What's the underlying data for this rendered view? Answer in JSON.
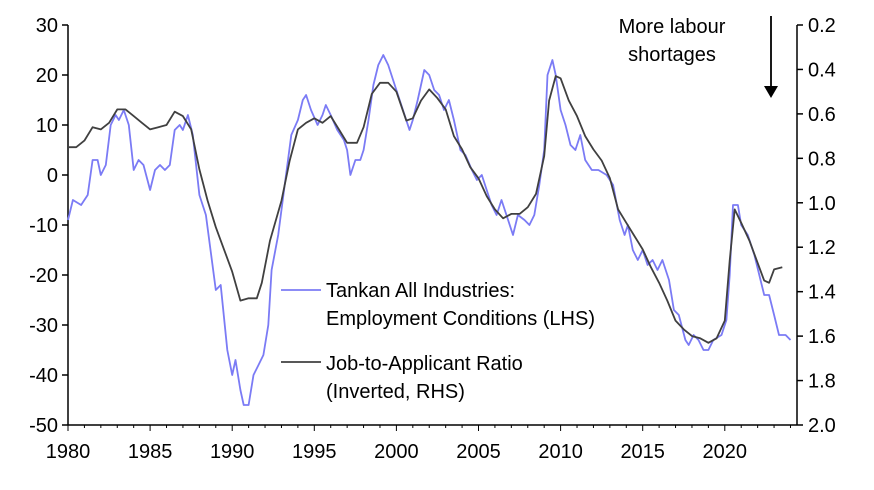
{
  "chart_data": {
    "type": "line",
    "title": "",
    "xlabel": "",
    "ylabel_left": "",
    "ylabel_right": "",
    "xlim": [
      1980,
      2024.3
    ],
    "ylim_left": [
      -50,
      30
    ],
    "ylim_right_inverted": [
      0.2,
      2.0
    ],
    "x_ticks": [
      "1980",
      "1985",
      "1990",
      "1995",
      "2000",
      "2005",
      "2010",
      "2015",
      "2020"
    ],
    "y_left_ticks": [
      "30",
      "20",
      "10",
      "0",
      "-10",
      "-20",
      "-30",
      "-40",
      "-50"
    ],
    "y_right_ticks": [
      "0.2",
      "0.4",
      "0.6",
      "0.8",
      "1.0",
      "1.2",
      "1.4",
      "1.6",
      "1.8",
      "2.0"
    ],
    "grid": false,
    "legend_placement": "center-bottom",
    "annotation": {
      "lines": [
        "More labour",
        "shortages"
      ],
      "arrow": "down"
    },
    "series": [
      {
        "name": "Tankan All Industries: Employment Conditions (LHS)",
        "legend_lines": [
          "Tankan All Industries:",
          "Employment Conditions (LHS)"
        ],
        "axis": "left",
        "color": "#7b7bf5",
        "points": [
          [
            1980.0,
            -9
          ],
          [
            1980.3,
            -5
          ],
          [
            1980.8,
            -6
          ],
          [
            1981.2,
            -4
          ],
          [
            1981.5,
            3
          ],
          [
            1981.8,
            3
          ],
          [
            1982.0,
            0
          ],
          [
            1982.3,
            2
          ],
          [
            1982.6,
            10
          ],
          [
            1982.9,
            12
          ],
          [
            1983.1,
            11
          ],
          [
            1983.4,
            13
          ],
          [
            1983.7,
            10
          ],
          [
            1984.0,
            1
          ],
          [
            1984.3,
            3
          ],
          [
            1984.6,
            2
          ],
          [
            1985.0,
            -3
          ],
          [
            1985.3,
            1
          ],
          [
            1985.6,
            2
          ],
          [
            1985.9,
            1
          ],
          [
            1986.2,
            2
          ],
          [
            1986.5,
            9
          ],
          [
            1986.8,
            10
          ],
          [
            1987.0,
            9
          ],
          [
            1987.3,
            12
          ],
          [
            1987.6,
            8
          ],
          [
            1988.0,
            -4
          ],
          [
            1988.4,
            -8
          ],
          [
            1988.8,
            -18
          ],
          [
            1989.0,
            -23
          ],
          [
            1989.3,
            -22
          ],
          [
            1989.7,
            -35
          ],
          [
            1990.0,
            -40
          ],
          [
            1990.2,
            -37
          ],
          [
            1990.5,
            -43
          ],
          [
            1990.7,
            -46
          ],
          [
            1991.0,
            -46
          ],
          [
            1991.3,
            -40
          ],
          [
            1991.6,
            -38
          ],
          [
            1991.9,
            -36
          ],
          [
            1992.2,
            -30
          ],
          [
            1992.4,
            -19
          ],
          [
            1992.8,
            -12
          ],
          [
            1993.2,
            -2
          ],
          [
            1993.6,
            8
          ],
          [
            1994.0,
            11
          ],
          [
            1994.3,
            15
          ],
          [
            1994.5,
            16
          ],
          [
            1994.8,
            13
          ],
          [
            1995.2,
            10
          ],
          [
            1995.5,
            12
          ],
          [
            1995.7,
            14
          ],
          [
            1996.0,
            12
          ],
          [
            1996.4,
            9
          ],
          [
            1996.8,
            7
          ],
          [
            1997.0,
            5
          ],
          [
            1997.2,
            0
          ],
          [
            1997.5,
            3
          ],
          [
            1997.8,
            3
          ],
          [
            1998.0,
            5
          ],
          [
            1998.3,
            11
          ],
          [
            1998.6,
            18
          ],
          [
            1998.9,
            22
          ],
          [
            1999.2,
            24
          ],
          [
            1999.5,
            22
          ],
          [
            1999.8,
            19
          ],
          [
            2000.1,
            16
          ],
          [
            2000.5,
            12
          ],
          [
            2000.8,
            9
          ],
          [
            2001.0,
            11
          ],
          [
            2001.3,
            15
          ],
          [
            2001.7,
            21
          ],
          [
            2002.0,
            20
          ],
          [
            2002.3,
            17
          ],
          [
            2002.6,
            16
          ],
          [
            2002.9,
            13
          ],
          [
            2003.2,
            15
          ],
          [
            2003.5,
            11
          ],
          [
            2003.9,
            5
          ],
          [
            2004.2,
            4
          ],
          [
            2004.6,
            1
          ],
          [
            2004.9,
            -1
          ],
          [
            2005.2,
            0
          ],
          [
            2005.5,
            -3
          ],
          [
            2005.8,
            -6
          ],
          [
            2006.1,
            -8
          ],
          [
            2006.4,
            -5
          ],
          [
            2006.8,
            -9
          ],
          [
            2007.1,
            -12
          ],
          [
            2007.4,
            -8
          ],
          [
            2007.8,
            -9
          ],
          [
            2008.1,
            -10
          ],
          [
            2008.4,
            -8
          ],
          [
            2008.7,
            -2
          ],
          [
            2009.0,
            5
          ],
          [
            2009.2,
            20
          ],
          [
            2009.5,
            23
          ],
          [
            2009.7,
            20
          ],
          [
            2010.0,
            13
          ],
          [
            2010.3,
            10
          ],
          [
            2010.6,
            6
          ],
          [
            2010.9,
            5
          ],
          [
            2011.2,
            8
          ],
          [
            2011.5,
            3
          ],
          [
            2011.9,
            1
          ],
          [
            2012.3,
            1
          ],
          [
            2012.8,
            0
          ],
          [
            2013.2,
            -2
          ],
          [
            2013.6,
            -9
          ],
          [
            2013.9,
            -12
          ],
          [
            2014.1,
            -10
          ],
          [
            2014.4,
            -15
          ],
          [
            2014.7,
            -17
          ],
          [
            2015.0,
            -15
          ],
          [
            2015.3,
            -18
          ],
          [
            2015.6,
            -17
          ],
          [
            2015.9,
            -19
          ],
          [
            2016.2,
            -17
          ],
          [
            2016.6,
            -21
          ],
          [
            2016.9,
            -27
          ],
          [
            2017.2,
            -28
          ],
          [
            2017.6,
            -33
          ],
          [
            2017.8,
            -34
          ],
          [
            2018.1,
            -32
          ],
          [
            2018.4,
            -33
          ],
          [
            2018.7,
            -35
          ],
          [
            2019.0,
            -35
          ],
          [
            2019.3,
            -33
          ],
          [
            2019.8,
            -32
          ],
          [
            2020.1,
            -29
          ],
          [
            2020.3,
            -20
          ],
          [
            2020.5,
            -6
          ],
          [
            2020.8,
            -6
          ],
          [
            2021.0,
            -10
          ],
          [
            2021.4,
            -12
          ],
          [
            2021.8,
            -16
          ],
          [
            2022.1,
            -20
          ],
          [
            2022.4,
            -24
          ],
          [
            2022.7,
            -24
          ],
          [
            2023.0,
            -28
          ],
          [
            2023.3,
            -32
          ],
          [
            2023.7,
            -32
          ],
          [
            2024.0,
            -33
          ]
        ]
      },
      {
        "name": "Job-to-Applicant Ratio (Inverted, RHS)",
        "legend_lines": [
          "Job-to-Applicant Ratio",
          "(Inverted, RHS)"
        ],
        "axis": "right",
        "color": "#404040",
        "points": [
          [
            1980.0,
            0.75
          ],
          [
            1980.5,
            0.75
          ],
          [
            1981.0,
            0.72
          ],
          [
            1981.5,
            0.66
          ],
          [
            1982.0,
            0.67
          ],
          [
            1982.5,
            0.64
          ],
          [
            1983.0,
            0.58
          ],
          [
            1983.5,
            0.58
          ],
          [
            1984.0,
            0.61
          ],
          [
            1984.5,
            0.64
          ],
          [
            1985.0,
            0.67
          ],
          [
            1985.5,
            0.66
          ],
          [
            1986.0,
            0.65
          ],
          [
            1986.5,
            0.59
          ],
          [
            1987.0,
            0.61
          ],
          [
            1987.5,
            0.67
          ],
          [
            1988.0,
            0.85
          ],
          [
            1988.5,
            0.99
          ],
          [
            1989.0,
            1.11
          ],
          [
            1989.5,
            1.21
          ],
          [
            1990.0,
            1.31
          ],
          [
            1990.5,
            1.44
          ],
          [
            1991.0,
            1.43
          ],
          [
            1991.5,
            1.43
          ],
          [
            1991.8,
            1.36
          ],
          [
            1992.3,
            1.17
          ],
          [
            1993.0,
            0.99
          ],
          [
            1993.5,
            0.81
          ],
          [
            1994.0,
            0.67
          ],
          [
            1994.5,
            0.64
          ],
          [
            1995.0,
            0.62
          ],
          [
            1995.5,
            0.64
          ],
          [
            1996.0,
            0.61
          ],
          [
            1996.5,
            0.67
          ],
          [
            1997.0,
            0.73
          ],
          [
            1997.6,
            0.73
          ],
          [
            1998.0,
            0.66
          ],
          [
            1998.5,
            0.51
          ],
          [
            1999.0,
            0.46
          ],
          [
            1999.5,
            0.46
          ],
          [
            2000.0,
            0.5
          ],
          [
            2000.6,
            0.63
          ],
          [
            2001.0,
            0.62
          ],
          [
            2001.5,
            0.54
          ],
          [
            2002.0,
            0.49
          ],
          [
            2002.5,
            0.53
          ],
          [
            2003.0,
            0.58
          ],
          [
            2003.5,
            0.7
          ],
          [
            2004.0,
            0.76
          ],
          [
            2004.5,
            0.84
          ],
          [
            2005.0,
            0.89
          ],
          [
            2005.5,
            0.97
          ],
          [
            2006.0,
            1.03
          ],
          [
            2006.5,
            1.07
          ],
          [
            2007.0,
            1.05
          ],
          [
            2007.5,
            1.05
          ],
          [
            2008.0,
            1.02
          ],
          [
            2008.5,
            0.96
          ],
          [
            2009.0,
            0.79
          ],
          [
            2009.3,
            0.54
          ],
          [
            2009.7,
            0.43
          ],
          [
            2010.0,
            0.44
          ],
          [
            2010.5,
            0.54
          ],
          [
            2011.0,
            0.61
          ],
          [
            2011.5,
            0.7
          ],
          [
            2012.0,
            0.76
          ],
          [
            2012.5,
            0.81
          ],
          [
            2013.0,
            0.89
          ],
          [
            2013.5,
            1.03
          ],
          [
            2014.0,
            1.09
          ],
          [
            2014.5,
            1.15
          ],
          [
            2015.0,
            1.21
          ],
          [
            2015.5,
            1.29
          ],
          [
            2016.0,
            1.36
          ],
          [
            2016.5,
            1.44
          ],
          [
            2017.0,
            1.53
          ],
          [
            2017.5,
            1.57
          ],
          [
            2018.0,
            1.6
          ],
          [
            2018.5,
            1.61
          ],
          [
            2019.0,
            1.63
          ],
          [
            2019.5,
            1.61
          ],
          [
            2020.0,
            1.53
          ],
          [
            2020.3,
            1.26
          ],
          [
            2020.6,
            1.03
          ],
          [
            2021.0,
            1.09
          ],
          [
            2021.5,
            1.17
          ],
          [
            2022.0,
            1.27
          ],
          [
            2022.4,
            1.35
          ],
          [
            2022.7,
            1.36
          ],
          [
            2023.0,
            1.3
          ],
          [
            2023.5,
            1.29
          ]
        ]
      }
    ]
  }
}
